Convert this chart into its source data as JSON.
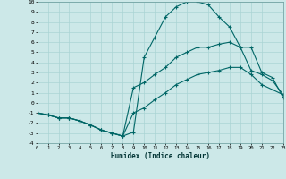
{
  "xlabel": "Humidex (Indice chaleur)",
  "xlim": [
    0,
    23
  ],
  "ylim": [
    -4,
    10
  ],
  "xticks": [
    0,
    1,
    2,
    3,
    4,
    5,
    6,
    7,
    8,
    9,
    10,
    11,
    12,
    13,
    14,
    15,
    16,
    17,
    18,
    19,
    20,
    21,
    22,
    23
  ],
  "yticks": [
    -4,
    -3,
    -2,
    -1,
    0,
    1,
    2,
    3,
    4,
    5,
    6,
    7,
    8,
    9,
    10
  ],
  "bg_color": "#cce8e8",
  "grid_color": "#aad4d4",
  "line_color": "#006666",
  "line1_x": [
    0,
    1,
    2,
    3,
    4,
    5,
    6,
    7,
    8,
    9,
    10,
    11,
    12,
    13,
    14,
    15,
    16,
    17,
    18,
    19,
    20,
    21,
    22,
    23
  ],
  "line1_y": [
    -1,
    -1.2,
    -1.5,
    -1.5,
    -1.8,
    -2.2,
    -2.7,
    -3.0,
    -3.3,
    -2.9,
    4.5,
    6.5,
    8.5,
    9.5,
    10.0,
    10.0,
    9.7,
    8.5,
    7.5,
    5.5,
    5.5,
    3.0,
    2.5,
    0.5
  ],
  "line2_x": [
    0,
    1,
    2,
    3,
    4,
    5,
    6,
    7,
    8,
    9,
    10,
    11,
    12,
    13,
    14,
    15,
    16,
    17,
    18,
    19,
    20,
    21,
    22,
    23
  ],
  "line2_y": [
    -1,
    -1.2,
    -1.5,
    -1.5,
    -1.8,
    -2.2,
    -2.7,
    -3.0,
    -3.3,
    1.5,
    2.0,
    2.8,
    3.5,
    4.5,
    5.0,
    5.5,
    5.5,
    5.8,
    6.0,
    5.5,
    3.2,
    2.8,
    2.2,
    0.8
  ],
  "line3_x": [
    0,
    1,
    2,
    3,
    4,
    5,
    6,
    7,
    8,
    9,
    10,
    11,
    12,
    13,
    14,
    15,
    16,
    17,
    18,
    19,
    20,
    21,
    22,
    23
  ],
  "line3_y": [
    -1,
    -1.2,
    -1.5,
    -1.5,
    -1.8,
    -2.2,
    -2.7,
    -3.0,
    -3.3,
    -1.0,
    -0.5,
    0.3,
    1.0,
    1.8,
    2.3,
    2.8,
    3.0,
    3.2,
    3.5,
    3.5,
    2.8,
    1.8,
    1.3,
    0.8
  ]
}
